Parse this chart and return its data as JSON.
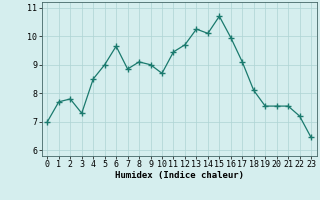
{
  "x": [
    0,
    1,
    2,
    3,
    4,
    5,
    6,
    7,
    8,
    9,
    10,
    11,
    12,
    13,
    14,
    15,
    16,
    17,
    18,
    19,
    20,
    21,
    22,
    23
  ],
  "y": [
    7.0,
    7.7,
    7.8,
    7.3,
    8.5,
    9.0,
    9.65,
    8.85,
    9.1,
    9.0,
    8.7,
    9.45,
    9.7,
    10.25,
    10.1,
    10.7,
    9.95,
    9.1,
    8.1,
    7.55,
    7.55,
    7.55,
    7.2,
    6.45
  ],
  "line_color": "#1a7a6e",
  "marker": "+",
  "marker_size": 4,
  "bg_color": "#d5eeee",
  "grid_color": "#aed4d4",
  "xlabel": "Humidex (Indice chaleur)",
  "xlim": [
    -0.5,
    23.5
  ],
  "ylim": [
    5.8,
    11.2
  ],
  "yticks": [
    6,
    7,
    8,
    9,
    10,
    11
  ],
  "xticks": [
    0,
    1,
    2,
    3,
    4,
    5,
    6,
    7,
    8,
    9,
    10,
    11,
    12,
    13,
    14,
    15,
    16,
    17,
    18,
    19,
    20,
    21,
    22,
    23
  ],
  "xlabel_fontsize": 6.5,
  "tick_fontsize": 6.0
}
